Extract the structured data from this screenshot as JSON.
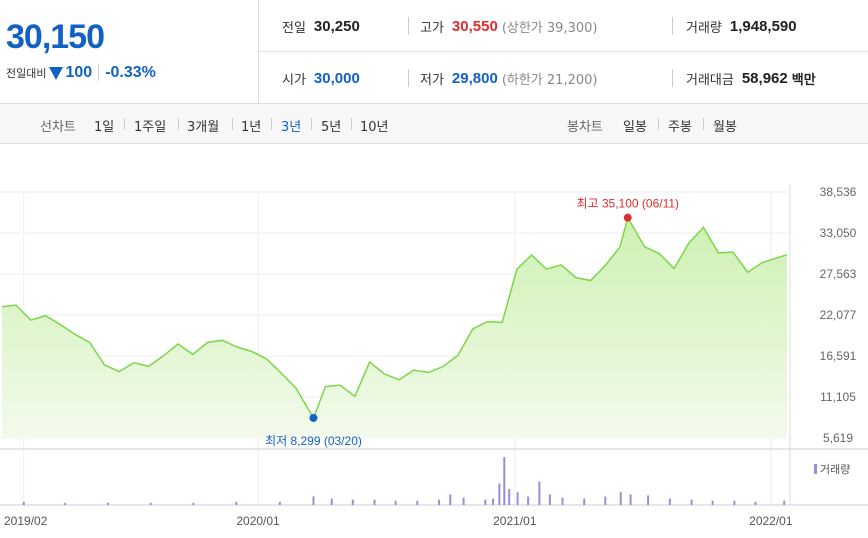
{
  "price": {
    "current": "30,150",
    "change_label": "전일대비",
    "change_value": "100",
    "change_pct": "-0.33%"
  },
  "stats": {
    "prev_label": "전일",
    "prev_value": "30,250",
    "high_label": "고가",
    "high_value": "30,550",
    "upper_limit": "(상한가 39,300)",
    "volume_label": "거래량",
    "volume_value": "1,948,590",
    "open_label": "시가",
    "open_value": "30,000",
    "low_label": "저가",
    "low_value": "29,800",
    "lower_limit": "(하한가 21,200)",
    "amount_label": "거래대금",
    "amount_value": "58,962",
    "amount_unit": "백만"
  },
  "tabs": {
    "line_label": "선차트",
    "line_tabs": [
      "1일",
      "1주일",
      "3개월",
      "1년",
      "3년",
      "5년",
      "10년"
    ],
    "active_line_tab": "3년",
    "candle_label": "봉차트",
    "candle_tabs": [
      "일봉",
      "주봉",
      "월봉"
    ]
  },
  "colors": {
    "up": "#e02d2d",
    "down": "#1261c4",
    "line": "#7dd64a",
    "volume": "#9a8fd6"
  },
  "chart_data": {
    "type": "area",
    "y_ticks": [
      "38,536",
      "33,050",
      "27,563",
      "22,077",
      "16,591",
      "11,105",
      "5,619"
    ],
    "y_tick_values": [
      38536,
      33050,
      27563,
      22077,
      16591,
      11105,
      5619
    ],
    "ylim": [
      5619,
      38536
    ],
    "x_ticks": [
      "2019/02",
      "2020/01",
      "2021/01",
      "2022/01"
    ],
    "x_tick_dates": [
      "2019-02-01",
      "2020-01-01",
      "2021-01-01",
      "2022-01-01"
    ],
    "xlim": [
      "2019-01-01",
      "2022-01-24"
    ],
    "high_annotation": "최고 35,100 (06/11)",
    "low_annotation": "최저 8,299 (03/20)",
    "high_point": {
      "date": "2021-06-11",
      "value": 35100
    },
    "low_point": {
      "date": "2020-03-20",
      "value": 8299
    },
    "volume_legend": "거래량",
    "series": [
      {
        "name": "",
        "x": [
          "2019-01-01",
          "2019-01-21",
          "2019-02-11",
          "2019-03-04",
          "2019-03-25",
          "2019-04-15",
          "2019-05-06",
          "2019-05-27",
          "2019-06-17",
          "2019-07-08",
          "2019-07-29",
          "2019-08-19",
          "2019-09-09",
          "2019-09-30",
          "2019-10-21",
          "2019-11-11",
          "2019-12-02",
          "2019-12-23",
          "2020-01-13",
          "2020-02-03",
          "2020-02-24",
          "2020-03-20",
          "2020-04-06",
          "2020-04-27",
          "2020-05-18",
          "2020-06-08",
          "2020-06-29",
          "2020-07-20",
          "2020-08-10",
          "2020-08-31",
          "2020-09-21",
          "2020-10-12",
          "2020-11-02",
          "2020-11-23",
          "2020-12-14",
          "2021-01-04",
          "2021-01-25",
          "2021-02-15",
          "2021-03-08",
          "2021-03-29",
          "2021-04-19",
          "2021-05-10",
          "2021-05-31",
          "2021-06-11",
          "2021-07-05",
          "2021-07-26",
          "2021-08-16",
          "2021-09-06",
          "2021-09-27",
          "2021-10-18",
          "2021-11-08",
          "2021-11-29",
          "2021-12-20",
          "2022-01-24"
        ],
        "y": [
          23200,
          23400,
          21400,
          22000,
          20800,
          19500,
          18400,
          15400,
          14500,
          15700,
          15200,
          16600,
          18200,
          16800,
          18400,
          18700,
          17800,
          17200,
          16200,
          14300,
          12300,
          8299,
          12500,
          12700,
          11200,
          15800,
          14200,
          13400,
          14700,
          14400,
          15200,
          16700,
          20200,
          21200,
          21100,
          28200,
          30100,
          28200,
          28800,
          27100,
          26700,
          28700,
          31200,
          35100,
          31200,
          30300,
          28300,
          31700,
          33800,
          30400,
          30500,
          27800,
          29100,
          30150
        ]
      }
    ],
    "volume": [
      {
        "date": "2019-02-01",
        "value": 3
      },
      {
        "date": "2019-04-01",
        "value": 2
      },
      {
        "date": "2019-06-01",
        "value": 2
      },
      {
        "date": "2019-08-01",
        "value": 2
      },
      {
        "date": "2019-10-01",
        "value": 2
      },
      {
        "date": "2019-12-01",
        "value": 3
      },
      {
        "date": "2020-02-01",
        "value": 3
      },
      {
        "date": "2020-03-20",
        "value": 8
      },
      {
        "date": "2020-04-15",
        "value": 6
      },
      {
        "date": "2020-05-15",
        "value": 5
      },
      {
        "date": "2020-06-15",
        "value": 5
      },
      {
        "date": "2020-07-15",
        "value": 4
      },
      {
        "date": "2020-08-15",
        "value": 4
      },
      {
        "date": "2020-09-15",
        "value": 5
      },
      {
        "date": "2020-10-01",
        "value": 10
      },
      {
        "date": "2020-10-20",
        "value": 7
      },
      {
        "date": "2020-11-20",
        "value": 5
      },
      {
        "date": "2020-12-01",
        "value": 6
      },
      {
        "date": "2020-12-10",
        "value": 20
      },
      {
        "date": "2020-12-17",
        "value": 45
      },
      {
        "date": "2020-12-24",
        "value": 15
      },
      {
        "date": "2021-01-05",
        "value": 12
      },
      {
        "date": "2021-01-20",
        "value": 8
      },
      {
        "date": "2021-02-05",
        "value": 22
      },
      {
        "date": "2021-02-20",
        "value": 10
      },
      {
        "date": "2021-03-10",
        "value": 7
      },
      {
        "date": "2021-04-10",
        "value": 6
      },
      {
        "date": "2021-05-10",
        "value": 8
      },
      {
        "date": "2021-06-01",
        "value": 12
      },
      {
        "date": "2021-06-15",
        "value": 10
      },
      {
        "date": "2021-07-10",
        "value": 9
      },
      {
        "date": "2021-08-10",
        "value": 6
      },
      {
        "date": "2021-09-10",
        "value": 5
      },
      {
        "date": "2021-10-10",
        "value": 4
      },
      {
        "date": "2021-11-10",
        "value": 4
      },
      {
        "date": "2021-12-10",
        "value": 3
      },
      {
        "date": "2022-01-20",
        "value": 4
      }
    ]
  }
}
